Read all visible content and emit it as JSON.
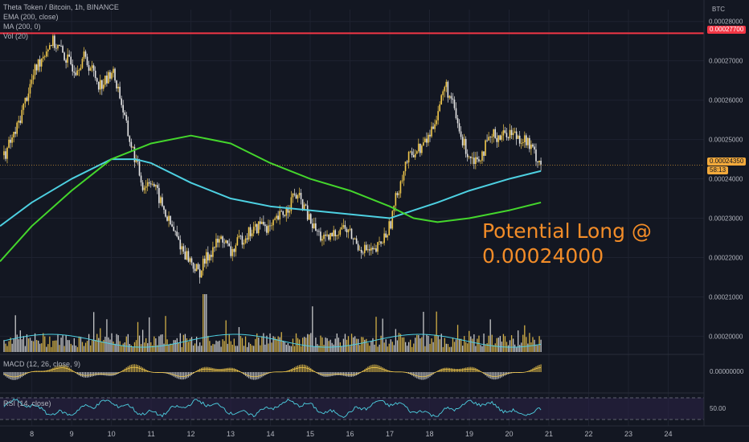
{
  "legend": {
    "symbol": "Theta Token / Bitcoin, 1h, BINANCE",
    "ema": "EMA (200, close)",
    "ma": "MA (200, 0)",
    "vol": "Vol (20)"
  },
  "currency": "BTC",
  "annotation": {
    "line1": "Potential Long @",
    "line2": "0.00024000"
  },
  "resistance_label": "0.00027700",
  "last_price_label": "0.00024350",
  "countdown": "58:13",
  "macd_label": "MACD (12, 26, close, 9)",
  "macd_value": "0.00000000",
  "rsi_label": "RSI (14, close)",
  "rsi_value": "50.00",
  "colors": {
    "background": "#131722",
    "up": "#f2c94c",
    "down": "#e6e6e6",
    "ema": "#4dd0e1",
    "ma": "#44d62c",
    "resistance": "#f23645",
    "annotation": "#f28c28",
    "rsi_band": "#2a2245"
  },
  "chart_data": {
    "type": "line",
    "title": "Theta Token / Bitcoin, 1h, BINANCE",
    "y_axis_ticks": [
      "0.00028000",
      "0.00027000",
      "0.00026000",
      "0.00025000",
      "0.00024000",
      "0.00023000",
      "0.00022000",
      "0.00021000",
      "0.00020000"
    ],
    "x_axis_ticks": [
      "8",
      "9",
      "10",
      "11",
      "12",
      "13",
      "14",
      "15",
      "16",
      "17",
      "18",
      "19",
      "20",
      "21",
      "22",
      "23",
      "24"
    ],
    "ylim": [
      0.000196,
      0.000283
    ],
    "xlim": [
      7.2,
      24.9
    ],
    "price": {
      "x": [
        7.3,
        7.6,
        7.9,
        8.1,
        8.3,
        8.5,
        8.7,
        8.9,
        9.1,
        9.3,
        9.5,
        9.7,
        9.9,
        10.0,
        10.2,
        10.4,
        10.6,
        10.8,
        11.0,
        11.2,
        11.4,
        11.6,
        11.8,
        12.0,
        12.2,
        12.4,
        12.6,
        12.8,
        13.0,
        13.2,
        13.4,
        13.6,
        13.8,
        14.0,
        14.2,
        14.4,
        14.6,
        14.8,
        15.0,
        15.2,
        15.4,
        15.6,
        15.8,
        16.0,
        16.2,
        16.4,
        16.6,
        16.8,
        17.0,
        17.2,
        17.4,
        17.6,
        17.8,
        18.0,
        18.2,
        18.4,
        18.6,
        18.8,
        19.0,
        19.2,
        19.4,
        19.6,
        19.8,
        20.0,
        20.2,
        20.4,
        20.6,
        20.8
      ],
      "y": [
        0.000246,
        0.000252,
        0.000262,
        0.000268,
        0.000272,
        0.000275,
        0.000273,
        0.00027,
        0.000268,
        0.000271,
        0.000268,
        0.000264,
        0.000265,
        0.000268,
        0.000262,
        0.000252,
        0.000245,
        0.000238,
        0.00024,
        0.000235,
        0.00023,
        0.000226,
        0.000222,
        0.000219,
        0.000216,
        0.00022,
        0.000223,
        0.000225,
        0.000221,
        0.000224,
        0.000226,
        0.000227,
        0.000229,
        0.000227,
        0.00023,
        0.000232,
        0.000236,
        0.000234,
        0.000229,
        0.000226,
        0.000224,
        0.000226,
        0.000228,
        0.000226,
        0.000223,
        0.000222,
        0.000221,
        0.000224,
        0.000228,
        0.000237,
        0.000244,
        0.000247,
        0.000248,
        0.000251,
        0.000257,
        0.000264,
        0.000258,
        0.00025,
        0.000246,
        0.000245,
        0.000248,
        0.000251,
        0.000251,
        0.000252,
        0.000251,
        0.00025,
        0.000247,
        0.000244
      ]
    },
    "ema200": {
      "name": "EMA (200, close)",
      "x": [
        7.2,
        8.0,
        9.0,
        10.0,
        10.6,
        11.0,
        12.0,
        13.0,
        14.0,
        15.0,
        16.0,
        17.0,
        17.6,
        18.2,
        19.0,
        20.0,
        20.8
      ],
      "y": [
        0.000228,
        0.000234,
        0.00024,
        0.000245,
        0.000245,
        0.000244,
        0.000239,
        0.000235,
        0.000233,
        0.000232,
        0.000231,
        0.00023,
        0.000232,
        0.000234,
        0.000237,
        0.00024,
        0.000242
      ]
    },
    "ma200": {
      "name": "MA (200, 0)",
      "x": [
        7.2,
        8.0,
        9.0,
        10.0,
        11.0,
        12.0,
        13.0,
        14.0,
        15.0,
        16.0,
        17.0,
        17.6,
        18.2,
        19.0,
        20.0,
        20.8
      ],
      "y": [
        0.000219,
        0.000228,
        0.000237,
        0.000245,
        0.000249,
        0.000251,
        0.000249,
        0.000244,
        0.00024,
        0.000237,
        0.000233,
        0.00023,
        0.000229,
        0.00023,
        0.000232,
        0.000234
      ]
    },
    "resistance": 0.000277,
    "last_price": 0.0002435
  }
}
